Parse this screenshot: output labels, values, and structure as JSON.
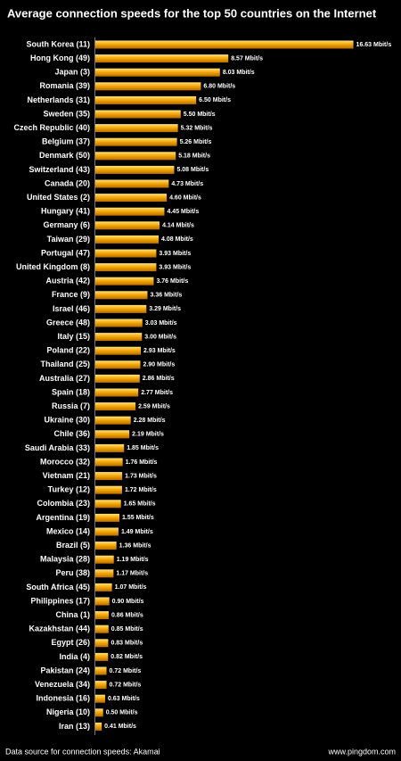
{
  "chart_data": {
    "type": "barh",
    "title": "Average connection speeds for the top 50 countries on the Internet",
    "categories": [
      "South Korea (11)",
      "Hong Kong (49)",
      "Japan (3)",
      "Romania (39)",
      "Netherlands (31)",
      "Sweden (35)",
      "Czech Republic (40)",
      "Belgium (37)",
      "Denmark (50)",
      "Switzerland (43)",
      "Canada (20)",
      "United States (2)",
      "Hungary (41)",
      "Germany (6)",
      "Taiwan (29)",
      "Portugal (47)",
      "United Kingdom (8)",
      "Austria (42)",
      "France (9)",
      "Israel (46)",
      "Greece (48)",
      "Italy (15)",
      "Poland (22)",
      "Thailand (25)",
      "Australia (27)",
      "Spain (18)",
      "Russia (7)",
      "Ukraine (30)",
      "Chile (36)",
      "Saudi Arabia (33)",
      "Morocco (32)",
      "Vietnam (21)",
      "Turkey (12)",
      "Colombia (23)",
      "Argentina (19)",
      "Mexico (14)",
      "Brazil (5)",
      "Malaysia (28)",
      "Peru (38)",
      "South Africa (45)",
      "Philippines (17)",
      "China (1)",
      "Kazakhstan (44)",
      "Egypt (26)",
      "India (4)",
      "Pakistan (24)",
      "Venezuela (34)",
      "Indonesia (16)",
      "Nigeria (10)",
      "Iran (13)"
    ],
    "values": [
      16.63,
      8.57,
      8.03,
      6.8,
      6.5,
      5.5,
      5.32,
      5.26,
      5.18,
      5.08,
      4.73,
      4.6,
      4.45,
      4.14,
      4.08,
      3.93,
      3.93,
      3.76,
      3.36,
      3.29,
      3.03,
      3.0,
      2.93,
      2.9,
      2.86,
      2.77,
      2.59,
      2.28,
      2.19,
      1.85,
      1.76,
      1.73,
      1.72,
      1.65,
      1.55,
      1.49,
      1.36,
      1.19,
      1.17,
      1.07,
      0.9,
      0.86,
      0.85,
      0.83,
      0.82,
      0.72,
      0.72,
      0.63,
      0.5,
      0.41
    ],
    "value_labels": [
      "16.63 Mbit/s",
      "8.57 Mbit/s",
      "8.03 Mbit/s",
      "6.80 Mbit/s",
      "6.50 Mbit/s",
      "5.50 Mbit/s",
      "5.32 Mbit/s",
      "5.26 Mbit/s",
      "5.18 Mbit/s",
      "5.08 Mbit/s",
      "4.73 Mbit/s",
      "4.60 Mbit/s",
      "4.45 Mbit/s",
      "4.14 Mbit/s",
      "4.08 Mbit/s",
      "3.93 Mbit/s",
      "3.93 Mbit/s",
      "3.76 Mbit/s",
      "3.36 Mbit/s",
      "3.29 Mbit/s",
      "3.03 Mbit/s",
      "3.00 Mbit/s",
      "2.93 Mbit/s",
      "2.90 Mbit/s",
      "2.86 Mbit/s",
      "2.77 Mbit/s",
      "2.59 Mbit/s",
      "2.28 Mbit/s",
      "2.19 Mbit/s",
      "1.85 Mbit/s",
      "1.76 Mbit/s",
      "1.73 Mbit/s",
      "1.72 Mbit/s",
      "1.65 Mbit/s",
      "1.55 Mbit/s",
      "1.49 Mbit/s",
      "1.36 Mbit/s",
      "1.19 Mbit/s",
      "1.17 Mbit/s",
      "1.07 Mbit/s",
      "0.90 Mbit/s",
      "0.86 Mbit/s",
      "0.85 Mbit/s",
      "0.83 Mbit/s",
      "0.82 Mbit/s",
      "0.72 Mbit/s",
      "0.72 Mbit/s",
      "0.63 Mbit/s",
      "0.50 Mbit/s",
      "0.41 Mbit/s"
    ],
    "color": "#f2a400",
    "xlim": [
      0,
      17
    ],
    "source": "Data source for connection speeds: Akamai",
    "credit": "www.pingdom.com"
  }
}
